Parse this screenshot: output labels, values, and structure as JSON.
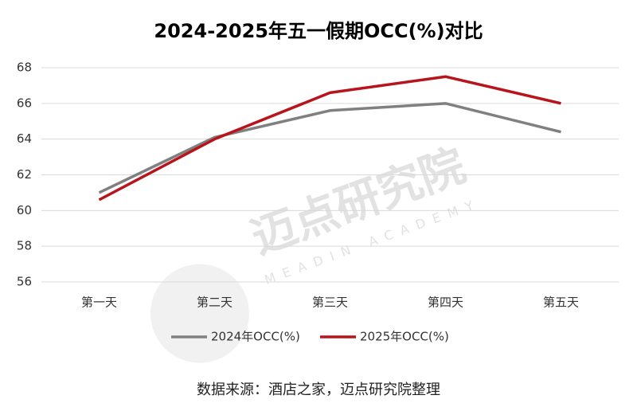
{
  "chart_data": {
    "type": "line",
    "title": "2024-2025年五一假期OCC(%)对比",
    "categories": [
      "第一天",
      "第二天",
      "第三天",
      "第四天",
      "第五天"
    ],
    "series": [
      {
        "name": "2024年OCC(%)",
        "color": "#808080",
        "values": [
          61.0,
          64.1,
          65.6,
          66.0,
          64.4
        ]
      },
      {
        "name": "2025年OCC(%)",
        "color": "#b8141b",
        "values": [
          60.6,
          64.0,
          66.6,
          67.5,
          66.0
        ]
      }
    ],
    "ylim": [
      56,
      68
    ],
    "yticks": [
      56,
      58,
      60,
      62,
      64,
      66,
      68
    ],
    "grid": true,
    "legend": "bottom",
    "source": "数据来源：酒店之家，迈点研究院整理",
    "watermark": "迈点研究院",
    "watermark_sub": "MEADIN ACADEMY"
  }
}
